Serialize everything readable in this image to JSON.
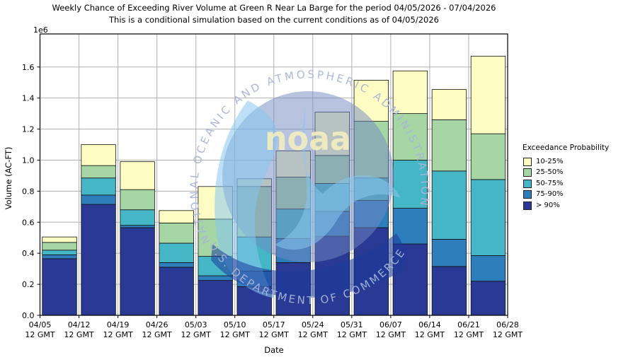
{
  "title": "Weekly Chance of Exceeding River Volume at Green R Near La Barge for the period 04/05/2026 - 07/04/2026",
  "subtitle": "This is a conditional simulation based on the current conditions as of 04/05/2026",
  "watermark": {
    "arc_top": "NATIONAL OCEANIC AND ATMOSPHERIC ADMINISTRATION",
    "arc_bottom": "U.S. DEPARTMENT OF COMMERCE",
    "logo_text": "noaa"
  },
  "chart_data": {
    "type": "bar",
    "stacked": true,
    "title": "Weekly Chance of Exceeding River Volume at Green R Near La Barge for the period 04/05/2026 - 07/04/2026",
    "subtitle": "This is a conditional simulation based on the current conditions as of 04/05/2026",
    "xlabel": "Date",
    "ylabel": "Volume (AC-FT)",
    "offset_text": "1e6",
    "grid": true,
    "ylim": [
      0,
      1813000
    ],
    "ytick_values": [
      0,
      200000,
      400000,
      600000,
      800000,
      1000000,
      1200000,
      1400000,
      1600000
    ],
    "ytick_labels": [
      "0.0",
      "0.2",
      "0.4",
      "0.6",
      "0.8",
      "1.0",
      "1.2",
      "1.4",
      "1.6"
    ],
    "xtick_labels": [
      {
        "date": "04/05",
        "time": "12 GMT"
      },
      {
        "date": "04/12",
        "time": "12 GMT"
      },
      {
        "date": "04/19",
        "time": "12 GMT"
      },
      {
        "date": "04/26",
        "time": "12 GMT"
      },
      {
        "date": "05/03",
        "time": "12 GMT"
      },
      {
        "date": "05/10",
        "time": "12 GMT"
      },
      {
        "date": "05/17",
        "time": "12 GMT"
      },
      {
        "date": "05/24",
        "time": "12 GMT"
      },
      {
        "date": "05/31",
        "time": "12 GMT"
      },
      {
        "date": "06/07",
        "time": "12 GMT"
      },
      {
        "date": "06/14",
        "time": "12 GMT"
      },
      {
        "date": "06/21",
        "time": "12 GMT"
      },
      {
        "date": "06/28",
        "time": "12 GMT"
      }
    ],
    "categories": [
      "04/05",
      "04/12",
      "04/19",
      "04/26",
      "05/03",
      "05/10",
      "05/17",
      "05/24",
      "05/31",
      "06/07",
      "06/14",
      "06/21"
    ],
    "series": [
      {
        "name": "> 90%",
        "color": "#2a3a94",
        "values": [
          365000,
          715000,
          565000,
          310000,
          225000,
          185000,
          340000,
          510000,
          565000,
          460000,
          315000,
          220000
        ]
      },
      {
        "name": "75-90%",
        "color": "#2e7ebc",
        "values": [
          25000,
          60000,
          15000,
          30000,
          30000,
          100000,
          155000,
          160000,
          175000,
          230000,
          175000,
          165000
        ]
      },
      {
        "name": "50-75%",
        "color": "#45b6c6",
        "values": [
          30000,
          110000,
          100000,
          125000,
          125000,
          220000,
          190000,
          180000,
          145000,
          310000,
          440000,
          490000
        ]
      },
      {
        "name": "25-50%",
        "color": "#a5d6a4",
        "values": [
          50000,
          80000,
          130000,
          130000,
          240000,
          325000,
          205000,
          180000,
          365000,
          300000,
          330000,
          295000
        ]
      },
      {
        "name": "10-25%",
        "color": "#fdfdc3",
        "values": [
          35000,
          135000,
          180000,
          80000,
          210000,
          50000,
          170000,
          280000,
          265000,
          275000,
          195000,
          500000
        ]
      }
    ],
    "bar_totals": [
      505000,
      1100000,
      990000,
      675000,
      830000,
      880000,
      1060000,
      1310000,
      1515000,
      1575000,
      1455000,
      1670000
    ],
    "legend": {
      "title": "Exceedance Probability",
      "position": "right",
      "entries": [
        {
          "label": "10-25%",
          "color": "#fdfdc3"
        },
        {
          "label": "25-50%",
          "color": "#a5d6a4"
        },
        {
          "label": "50-75%",
          "color": "#45b6c6"
        },
        {
          "label": "75-90%",
          "color": "#2e7ebc"
        },
        {
          "label": "> 90%",
          "color": "#2a3a94"
        }
      ]
    },
    "colors": {
      "grid": "#b0b0b0",
      "bar_edge": "#111111",
      "frame": "#000000"
    }
  }
}
